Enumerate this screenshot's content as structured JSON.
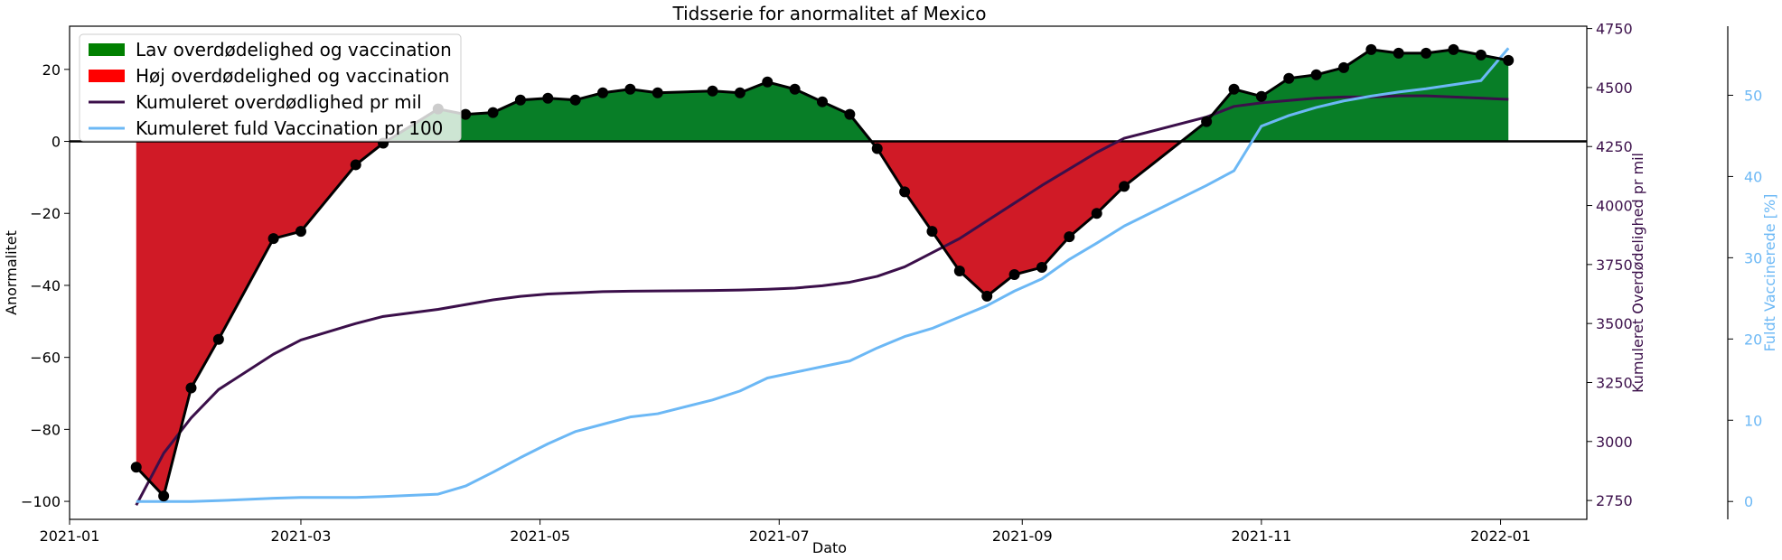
{
  "chart_data": {
    "type": "line",
    "title": "Tidsserie for anormalitet af Mexico",
    "xlabel": "Dato",
    "ylabel": "Anormalitet",
    "ylabel_right1": "Kumuleret Overdødelighed pr mil",
    "ylabel_right2": "Fuldt Vaccinerede [%]",
    "xlim": [
      "2021-01-01",
      "2022-01-23"
    ],
    "ylim": [
      -105,
      32
    ],
    "ylim_right1": [
      2670,
      4760
    ],
    "ylim_right2": [
      -2.2,
      58.5
    ],
    "x_ticks": [
      "2021-01",
      "2021-03",
      "2021-05",
      "2021-07",
      "2021-09",
      "2021-11",
      "2022-01"
    ],
    "y_ticks": [
      20,
      0,
      -20,
      -40,
      -60,
      -80,
      -100
    ],
    "y_ticks_right1": [
      4750,
      4500,
      4250,
      4000,
      3750,
      3500,
      3250,
      3000,
      2750
    ],
    "y_ticks_right2": [
      50,
      40,
      30,
      20,
      10,
      0
    ],
    "legend_position": "top-left",
    "legend": [
      {
        "label": "Lav overdødelighed og vaccination",
        "type": "patch",
        "color": "#008000"
      },
      {
        "label": "Høj overdødelighed og vaccination",
        "type": "patch",
        "color": "#ff0000"
      },
      {
        "label": "Kumuleret overdødlighed pr mil",
        "type": "line",
        "color": "#3b0f4a"
      },
      {
        "label": "Kumuleret fuld Vaccination pr 100",
        "type": "line",
        "color": "#6cb8f5"
      }
    ],
    "colors": {
      "positive_fill": "#087e27",
      "negative_fill": "#d01a26",
      "anomaly_line": "#000000",
      "mortality_line": "#3b0f4a",
      "vaccination_line": "#6cb8f5"
    },
    "series": [
      {
        "name": "Anormalitet",
        "x": [
          "2021-01-18",
          "2021-01-25",
          "2021-02-01",
          "2021-02-08",
          "2021-02-22",
          "2021-03-01",
          "2021-03-15",
          "2021-03-22",
          "2021-04-05",
          "2021-04-12",
          "2021-04-19",
          "2021-04-26",
          "2021-05-03",
          "2021-05-10",
          "2021-05-17",
          "2021-05-24",
          "2021-05-31",
          "2021-06-14",
          "2021-06-21",
          "2021-06-28",
          "2021-07-05",
          "2021-07-12",
          "2021-07-19",
          "2021-07-26",
          "2021-08-02",
          "2021-08-09",
          "2021-08-16",
          "2021-08-23",
          "2021-08-30",
          "2021-09-06",
          "2021-09-13",
          "2021-09-20",
          "2021-09-27",
          "2021-10-18",
          "2021-10-25",
          "2021-11-01",
          "2021-11-08",
          "2021-11-15",
          "2021-11-22",
          "2021-11-29",
          "2021-12-06",
          "2021-12-13",
          "2021-12-20",
          "2021-12-27",
          "2022-01-03"
        ],
        "values": [
          -90.5,
          -98.5,
          -68.5,
          -55,
          -27,
          -25,
          -6.5,
          -0.5,
          9,
          7.5,
          8,
          11.5,
          12,
          11.5,
          13.5,
          14.5,
          13.5,
          14,
          13.5,
          16.5,
          14.5,
          11,
          7.5,
          -2,
          -14,
          -25,
          -36,
          -43,
          -37,
          -35,
          -26.5,
          -20,
          -12.5,
          5.5,
          14.5,
          12.5,
          17.5,
          18.5,
          20.5,
          25.5,
          24.5,
          24.5,
          25.5,
          24,
          22.5
        ]
      },
      {
        "name": "Kumuleret overdødlighed pr mil",
        "axis": "right1",
        "x": [
          "2021-01-18",
          "2021-01-25",
          "2021-02-01",
          "2021-02-08",
          "2021-02-22",
          "2021-03-01",
          "2021-03-15",
          "2021-03-22",
          "2021-04-05",
          "2021-04-12",
          "2021-04-19",
          "2021-04-26",
          "2021-05-03",
          "2021-05-10",
          "2021-05-17",
          "2021-05-24",
          "2021-05-31",
          "2021-06-14",
          "2021-06-21",
          "2021-06-28",
          "2021-07-05",
          "2021-07-12",
          "2021-07-19",
          "2021-07-26",
          "2021-08-02",
          "2021-08-09",
          "2021-08-16",
          "2021-08-23",
          "2021-08-30",
          "2021-09-06",
          "2021-09-13",
          "2021-09-20",
          "2021-09-27",
          "2021-10-18",
          "2021-10-25",
          "2021-11-01",
          "2021-11-08",
          "2021-11-15",
          "2021-11-22",
          "2021-11-29",
          "2021-12-06",
          "2021-12-13",
          "2021-12-20",
          "2021-12-27",
          "2022-01-03"
        ],
        "values": [
          2730,
          2950,
          3100,
          3220,
          3370,
          3430,
          3500,
          3530,
          3560,
          3580,
          3600,
          3615,
          3625,
          3630,
          3635,
          3637,
          3638,
          3640,
          3642,
          3645,
          3650,
          3660,
          3675,
          3700,
          3740,
          3800,
          3860,
          3935,
          4010,
          4085,
          4155,
          4225,
          4285,
          4375,
          4420,
          4435,
          4445,
          4455,
          4460,
          4460,
          4465,
          4465,
          4460,
          4455,
          4450
        ]
      },
      {
        "name": "Kumuleret fuld Vaccination pr 100",
        "axis": "right2",
        "x": [
          "2021-01-18",
          "2021-01-25",
          "2021-02-01",
          "2021-02-08",
          "2021-02-22",
          "2021-03-01",
          "2021-03-15",
          "2021-03-22",
          "2021-04-05",
          "2021-04-12",
          "2021-04-19",
          "2021-04-26",
          "2021-05-03",
          "2021-05-10",
          "2021-05-17",
          "2021-05-24",
          "2021-05-31",
          "2021-06-14",
          "2021-06-21",
          "2021-06-28",
          "2021-07-05",
          "2021-07-12",
          "2021-07-19",
          "2021-07-26",
          "2021-08-02",
          "2021-08-09",
          "2021-08-16",
          "2021-08-23",
          "2021-08-30",
          "2021-09-06",
          "2021-09-13",
          "2021-09-20",
          "2021-09-27",
          "2021-10-18",
          "2021-10-25",
          "2021-11-01",
          "2021-11-08",
          "2021-11-15",
          "2021-11-22",
          "2021-11-29",
          "2021-12-06",
          "2021-12-13",
          "2021-12-20",
          "2021-12-27",
          "2022-01-03"
        ],
        "values": [
          0,
          0,
          0,
          0.1,
          0.4,
          0.5,
          0.5,
          0.6,
          0.9,
          1.9,
          3.6,
          5.4,
          7.1,
          8.6,
          9.5,
          10.4,
          10.8,
          12.5,
          13.6,
          15.2,
          15.9,
          16.6,
          17.3,
          18.9,
          20.3,
          21.3,
          22.7,
          24.1,
          25.9,
          27.4,
          29.8,
          31.8,
          33.9,
          38.9,
          40.7,
          46.2,
          47.5,
          48.5,
          49.3,
          49.9,
          50.4,
          50.8,
          51.3,
          51.8,
          55.8
        ]
      }
    ]
  }
}
